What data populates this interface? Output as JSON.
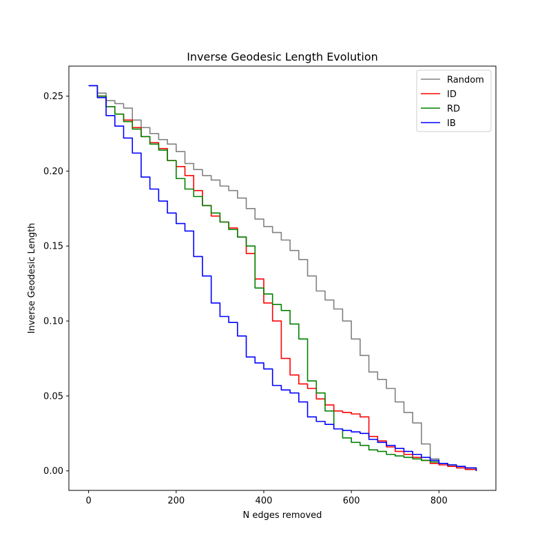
{
  "chart_data": {
    "type": "line",
    "title": "Inverse Geodesic Length Evolution",
    "xlabel": "N edges removed",
    "ylabel": "Inverse Geodesic Length",
    "xlim": [
      -45,
      930
    ],
    "ylim": [
      -0.013,
      0.27
    ],
    "xticks": [
      0,
      200,
      400,
      600,
      800
    ],
    "yticks": [
      0.0,
      0.05,
      0.1,
      0.15,
      0.2,
      0.25
    ],
    "xtick_labels": [
      "0",
      "200",
      "400",
      "600",
      "800"
    ],
    "ytick_labels": [
      "0.00",
      "0.05",
      "0.10",
      "0.15",
      "0.20",
      "0.25"
    ],
    "grid": false,
    "legend_position": "top-right",
    "series": [
      {
        "name": "Random",
        "color": "#808080",
        "x": [
          0,
          20,
          40,
          60,
          80,
          100,
          120,
          140,
          160,
          180,
          200,
          220,
          240,
          260,
          280,
          300,
          320,
          340,
          360,
          380,
          400,
          420,
          440,
          460,
          480,
          500,
          520,
          540,
          560,
          580,
          600,
          620,
          640,
          660,
          680,
          700,
          720,
          740,
          760,
          780,
          800,
          820,
          840,
          860,
          885
        ],
        "y": [
          0.257,
          0.252,
          0.247,
          0.245,
          0.242,
          0.234,
          0.229,
          0.225,
          0.221,
          0.218,
          0.213,
          0.205,
          0.201,
          0.197,
          0.194,
          0.19,
          0.187,
          0.182,
          0.175,
          0.168,
          0.163,
          0.159,
          0.154,
          0.147,
          0.141,
          0.13,
          0.12,
          0.114,
          0.108,
          0.1,
          0.088,
          0.077,
          0.066,
          0.061,
          0.055,
          0.046,
          0.039,
          0.032,
          0.018,
          0.008,
          0.005,
          0.003,
          0.002,
          0.001,
          0.0
        ]
      },
      {
        "name": "ID",
        "color": "#ff0000",
        "x": [
          0,
          20,
          40,
          60,
          80,
          100,
          120,
          140,
          160,
          180,
          200,
          220,
          240,
          260,
          280,
          300,
          320,
          340,
          360,
          380,
          400,
          420,
          440,
          460,
          480,
          500,
          520,
          540,
          560,
          580,
          600,
          620,
          640,
          660,
          680,
          700,
          720,
          740,
          760,
          780,
          800,
          820,
          840,
          860,
          885
        ],
        "y": [
          0.257,
          0.25,
          0.243,
          0.238,
          0.234,
          0.229,
          0.223,
          0.219,
          0.215,
          0.207,
          0.203,
          0.197,
          0.187,
          0.177,
          0.17,
          0.166,
          0.162,
          0.156,
          0.145,
          0.128,
          0.112,
          0.1,
          0.075,
          0.064,
          0.058,
          0.055,
          0.048,
          0.044,
          0.04,
          0.039,
          0.038,
          0.036,
          0.023,
          0.02,
          0.016,
          0.013,
          0.011,
          0.009,
          0.007,
          0.005,
          0.004,
          0.003,
          0.002,
          0.001,
          0.0
        ]
      },
      {
        "name": "RD",
        "color": "#008000",
        "x": [
          0,
          20,
          40,
          60,
          80,
          100,
          120,
          140,
          160,
          180,
          200,
          220,
          240,
          260,
          280,
          300,
          320,
          340,
          360,
          380,
          400,
          420,
          440,
          460,
          480,
          500,
          520,
          540,
          560,
          580,
          600,
          620,
          640,
          660,
          680,
          700,
          720,
          740,
          760,
          780,
          800,
          820,
          840,
          860,
          885
        ],
        "y": [
          0.257,
          0.25,
          0.243,
          0.238,
          0.233,
          0.228,
          0.223,
          0.218,
          0.214,
          0.207,
          0.195,
          0.188,
          0.183,
          0.177,
          0.172,
          0.166,
          0.161,
          0.156,
          0.15,
          0.122,
          0.118,
          0.111,
          0.107,
          0.098,
          0.088,
          0.06,
          0.052,
          0.04,
          0.028,
          0.022,
          0.019,
          0.017,
          0.014,
          0.013,
          0.011,
          0.01,
          0.009,
          0.008,
          0.007,
          0.006,
          0.005,
          0.004,
          0.003,
          0.002,
          0.0
        ]
      },
      {
        "name": "IB",
        "color": "#0000ff",
        "x": [
          0,
          20,
          40,
          60,
          80,
          100,
          120,
          140,
          160,
          180,
          200,
          220,
          240,
          260,
          280,
          300,
          320,
          340,
          360,
          380,
          400,
          420,
          440,
          460,
          480,
          500,
          520,
          540,
          560,
          580,
          600,
          620,
          640,
          660,
          680,
          700,
          720,
          740,
          760,
          780,
          800,
          820,
          840,
          860,
          885
        ],
        "y": [
          0.257,
          0.249,
          0.237,
          0.23,
          0.222,
          0.212,
          0.196,
          0.188,
          0.18,
          0.172,
          0.165,
          0.16,
          0.143,
          0.13,
          0.112,
          0.103,
          0.099,
          0.09,
          0.076,
          0.072,
          0.068,
          0.057,
          0.054,
          0.052,
          0.046,
          0.036,
          0.033,
          0.031,
          0.028,
          0.027,
          0.026,
          0.025,
          0.021,
          0.019,
          0.017,
          0.015,
          0.013,
          0.011,
          0.009,
          0.007,
          0.005,
          0.004,
          0.003,
          0.002,
          0.0
        ]
      }
    ]
  }
}
